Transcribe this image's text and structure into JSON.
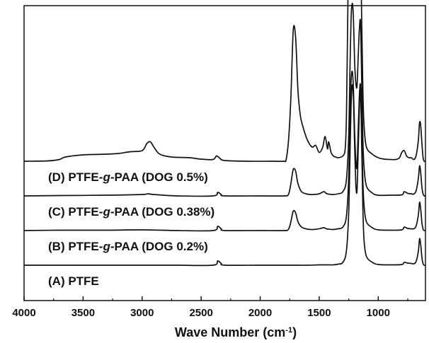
{
  "chart_data": {
    "type": "line",
    "title": "",
    "xlabel": "Wave Number (cm",
    "xlabel_sup": "-1",
    "xlabel_end": ")",
    "ylabel": "",
    "xlim": [
      4000,
      600
    ],
    "x_reversed": true,
    "y_ticks_shown": false,
    "grid": false,
    "xticks": [
      4000,
      3500,
      3000,
      2500,
      2000,
      1500,
      1000
    ],
    "xtick_labels": [
      "4000",
      "3500",
      "3000",
      "2500",
      "2000",
      "1500",
      "1000"
    ],
    "series": [
      {
        "key": "A",
        "name": "(A) PTFE",
        "name_prefix": "(A) PTFE",
        "name_italic": "",
        "name_suffix": "",
        "offset": 0,
        "x": [
          4000,
          3700,
          3300,
          3000,
          2700,
          2400,
          2360,
          2330,
          2300,
          2000,
          1800,
          1740,
          1700,
          1600,
          1500,
          1460,
          1420,
          1380,
          1340,
          1300,
          1270,
          1250,
          1240,
          1230,
          1220,
          1210,
          1200,
          1190,
          1180,
          1170,
          1160,
          1150,
          1140,
          1130,
          1120,
          1100,
          1050,
          1000,
          900,
          800,
          780,
          750,
          720,
          700,
          680,
          660,
          650,
          640,
          630,
          620,
          610,
          600
        ],
        "y": [
          0.0,
          0.0,
          0.0,
          0.0,
          0.0,
          0.0,
          0.12,
          0.05,
          0.0,
          0.0,
          0.0,
          0.0,
          0.0,
          0.0,
          0.01,
          0.01,
          0.01,
          0.01,
          0.03,
          0.08,
          0.4,
          1.5,
          3.0,
          4.5,
          5.1,
          4.7,
          3.4,
          2.3,
          2.1,
          3.2,
          4.4,
          5.0,
          3.4,
          1.6,
          0.7,
          0.25,
          0.08,
          0.02,
          0.01,
          0.02,
          0.08,
          0.06,
          0.05,
          0.04,
          0.1,
          0.4,
          0.75,
          0.58,
          0.22,
          0.04,
          0.0,
          0.0
        ]
      },
      {
        "key": "B",
        "name": "(B) PTFE-g-PAA (DOG 0.2%)",
        "name_prefix": "(B) PTFE-",
        "name_italic": "g",
        "name_suffix": "-PAA (DOG 0.2%)",
        "offset": 0.98,
        "x": [
          4000,
          3700,
          3300,
          3000,
          2700,
          2400,
          2360,
          2330,
          2300,
          2000,
          1800,
          1760,
          1740,
          1720,
          1700,
          1680,
          1650,
          1600,
          1550,
          1500,
          1460,
          1440,
          1420,
          1380,
          1340,
          1300,
          1270,
          1250,
          1240,
          1230,
          1220,
          1210,
          1200,
          1190,
          1180,
          1170,
          1160,
          1150,
          1140,
          1130,
          1120,
          1100,
          1050,
          1000,
          900,
          800,
          780,
          750,
          720,
          700,
          680,
          660,
          650,
          640,
          630,
          620,
          610,
          600
        ],
        "y": [
          0.0,
          0.01,
          0.01,
          0.02,
          0.0,
          0.0,
          0.12,
          0.05,
          0.0,
          0.0,
          0.0,
          0.04,
          0.25,
          0.55,
          0.5,
          0.25,
          0.1,
          0.04,
          0.03,
          0.05,
          0.08,
          0.05,
          0.04,
          0.03,
          0.05,
          0.1,
          0.4,
          1.5,
          3.0,
          4.2,
          4.5,
          4.0,
          2.8,
          2.0,
          1.8,
          2.8,
          3.8,
          4.1,
          2.8,
          1.4,
          0.7,
          0.25,
          0.08,
          0.02,
          0.01,
          0.02,
          0.1,
          0.06,
          0.05,
          0.05,
          0.12,
          0.45,
          0.8,
          0.6,
          0.22,
          0.04,
          0.0,
          0.0
        ]
      },
      {
        "key": "C",
        "name": "(C) PTFE-g-PAA (DOG 0.38%)",
        "name_prefix": "(C) PTFE-",
        "name_italic": "g",
        "name_suffix": "-PAA (DOG 0.38%)",
        "offset": 1.96,
        "x": [
          4000,
          3700,
          3300,
          3000,
          2950,
          2900,
          2700,
          2400,
          2360,
          2330,
          2300,
          2000,
          1800,
          1760,
          1740,
          1720,
          1700,
          1680,
          1650,
          1600,
          1550,
          1500,
          1460,
          1440,
          1420,
          1380,
          1340,
          1300,
          1270,
          1250,
          1240,
          1230,
          1220,
          1210,
          1200,
          1190,
          1180,
          1170,
          1160,
          1150,
          1140,
          1130,
          1120,
          1100,
          1050,
          1000,
          900,
          800,
          780,
          750,
          720,
          700,
          680,
          660,
          650,
          640,
          630,
          620,
          610,
          600
        ],
        "y": [
          0.0,
          0.01,
          0.02,
          0.04,
          0.06,
          0.04,
          0.0,
          0.0,
          0.1,
          0.04,
          0.0,
          0.0,
          0.0,
          0.05,
          0.35,
          0.75,
          0.7,
          0.35,
          0.12,
          0.05,
          0.04,
          0.06,
          0.12,
          0.07,
          0.05,
          0.04,
          0.06,
          0.12,
          0.45,
          1.7,
          3.5,
          5.0,
          5.45,
          5.0,
          3.8,
          3.2,
          3.1,
          3.9,
          4.7,
          4.9,
          3.3,
          1.6,
          0.8,
          0.28,
          0.08,
          0.02,
          0.02,
          0.03,
          0.12,
          0.07,
          0.06,
          0.05,
          0.14,
          0.5,
          0.85,
          0.65,
          0.24,
          0.05,
          0.0,
          0.0
        ]
      },
      {
        "key": "D",
        "name": "(D) PTFE-g-PAA (DOG 0.5%)",
        "name_prefix": "(D) PTFE-",
        "name_italic": "g",
        "name_suffix": "-PAA (DOG 0.5%)",
        "offset": 2.94,
        "x": [
          4000,
          3800,
          3700,
          3650,
          3500,
          3300,
          3200,
          3100,
          3000,
          2960,
          2930,
          2900,
          2850,
          2750,
          2600,
          2500,
          2400,
          2370,
          2340,
          2300,
          2100,
          1900,
          1800,
          1780,
          1760,
          1740,
          1720,
          1700,
          1680,
          1660,
          1640,
          1600,
          1560,
          1530,
          1500,
          1470,
          1450,
          1430,
          1420,
          1400,
          1380,
          1360,
          1340,
          1300,
          1280,
          1270,
          1260,
          1250,
          1240,
          1230,
          1220,
          1210,
          1200,
          1190,
          1180,
          1170,
          1160,
          1150,
          1140,
          1130,
          1120,
          1100,
          1050,
          1000,
          950,
          900,
          850,
          820,
          800,
          780,
          760,
          740,
          720,
          700,
          680,
          660,
          650,
          640,
          630,
          620,
          610,
          600
        ],
        "y": [
          0.0,
          0.01,
          0.05,
          0.12,
          0.18,
          0.2,
          0.22,
          0.27,
          0.3,
          0.5,
          0.55,
          0.4,
          0.2,
          0.12,
          0.1,
          0.06,
          0.05,
          0.15,
          0.08,
          0.02,
          0.0,
          0.0,
          0.0,
          0.05,
          0.6,
          1.8,
          3.7,
          3.5,
          2.0,
          1.3,
          1.0,
          0.6,
          0.4,
          0.45,
          0.25,
          0.4,
          0.7,
          0.35,
          0.55,
          0.25,
          0.15,
          0.12,
          0.1,
          0.15,
          0.35,
          1.2,
          3.6,
          6.2,
          6.9,
          6.5,
          6.6,
          6.7,
          6.5,
          6.8,
          6.9,
          7.0,
          6.8,
          6.4,
          4.0,
          2.0,
          1.0,
          0.4,
          0.2,
          0.1,
          0.06,
          0.05,
          0.05,
          0.1,
          0.25,
          0.3,
          0.15,
          0.1,
          0.1,
          0.05,
          0.15,
          0.6,
          1.1,
          1.0,
          0.5,
          0.1,
          0.0,
          0.0
        ]
      }
    ]
  }
}
